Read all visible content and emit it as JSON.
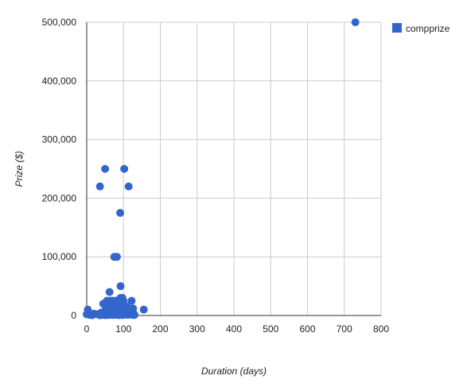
{
  "chart_data": {
    "type": "scatter",
    "xlabel": "Duration (days)",
    "ylabel": "Prize ($)",
    "xlim": [
      0,
      800
    ],
    "ylim": [
      0,
      500000
    ],
    "x_ticks": [
      0,
      100,
      200,
      300,
      400,
      500,
      600,
      700,
      800
    ],
    "x_tick_labels": [
      "0",
      "100",
      "200",
      "300",
      "400",
      "500",
      "600",
      "700",
      "800"
    ],
    "y_ticks": [
      0,
      100000,
      200000,
      300000,
      400000,
      500000
    ],
    "y_tick_labels": [
      "0",
      "100,000",
      "200,000",
      "300,000",
      "400,000",
      "500,000"
    ],
    "grid": true,
    "legend_position": "top-right",
    "series": [
      {
        "name": "compprize",
        "color": "#3366cc",
        "points": [
          [
            730,
            500000
          ],
          [
            50,
            250000
          ],
          [
            102,
            250000
          ],
          [
            36,
            220000
          ],
          [
            114,
            220000
          ],
          [
            91,
            175000
          ],
          [
            75,
            100000
          ],
          [
            82,
            100000
          ],
          [
            92,
            50000
          ],
          [
            62,
            40000
          ],
          [
            92,
            30000
          ],
          [
            97,
            30000
          ],
          [
            122,
            25000
          ],
          [
            55,
            25000
          ],
          [
            63,
            25000
          ],
          [
            70,
            25000
          ],
          [
            78,
            25000
          ],
          [
            85,
            25000
          ],
          [
            100,
            25000
          ],
          [
            45,
            20000
          ],
          [
            58,
            20000
          ],
          [
            72,
            20000
          ],
          [
            88,
            20000
          ],
          [
            95,
            20000
          ],
          [
            60,
            15000
          ],
          [
            75,
            15000
          ],
          [
            102,
            15000
          ],
          [
            110,
            15000
          ],
          [
            126,
            12000
          ],
          [
            155,
            10000
          ],
          [
            52,
            10000
          ],
          [
            68,
            10000
          ],
          [
            80,
            10000
          ],
          [
            90,
            10000
          ],
          [
            3,
            10000
          ],
          [
            5,
            5000
          ],
          [
            2,
            3000
          ],
          [
            20,
            3000
          ],
          [
            30,
            2000
          ],
          [
            40,
            5000
          ],
          [
            48,
            5000
          ],
          [
            65,
            5000
          ],
          [
            85,
            5000
          ],
          [
            105,
            5000
          ],
          [
            118,
            5000
          ],
          [
            42,
            1000
          ],
          [
            55,
            1000
          ],
          [
            62,
            1000
          ],
          [
            70,
            1000
          ],
          [
            78,
            1000
          ],
          [
            95,
            1000
          ],
          [
            100,
            1000
          ],
          [
            112,
            1000
          ],
          [
            125,
            1000
          ],
          [
            130,
            1000
          ],
          [
            8,
            1000
          ],
          [
            15,
            500
          ],
          [
            0,
            2000
          ],
          [
            35,
            500
          ],
          [
            50,
            500
          ],
          [
            88,
            500
          ],
          [
            120,
            2000
          ],
          [
            128,
            3000
          ]
        ]
      }
    ]
  }
}
